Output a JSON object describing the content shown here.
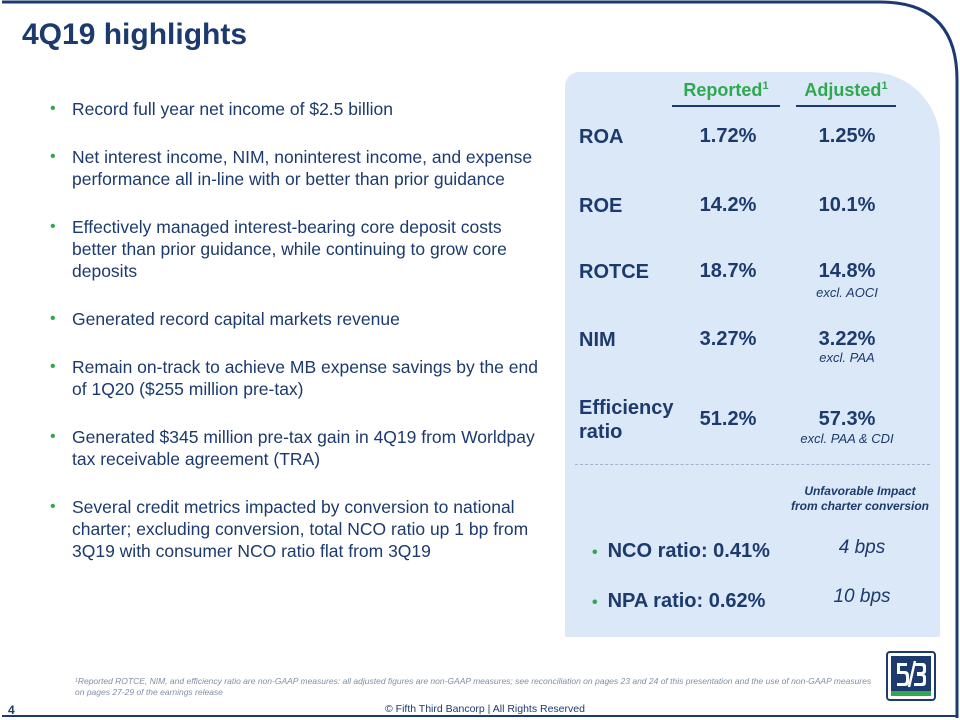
{
  "page": {
    "title": "4Q19 highlights",
    "page_number": "4",
    "copyright": "© Fifth Third Bancorp | All Rights Reserved",
    "footnote": "¹Reported ROTCE, NIM, and efficiency ratio are non-GAAP measures: all adjusted figures are non-GAAP measures; see reconciliation on pages 23 and 24 of this presentation and the use of non-GAAP measures on pages 27-29 of the earnings release"
  },
  "bullets": [
    "Record full year net income of $2.5 billion",
    "Net interest income, NIM, noninterest income, and expense performance all in-line with or better than prior guidance",
    "Effectively managed interest-bearing core deposit costs better than prior guidance, while continuing to grow core deposits",
    "Generated record capital markets revenue",
    "Remain on-track to achieve MB expense savings by the end of 1Q20 ($255 million pre-tax)",
    "Generated $345 million pre-tax gain in 4Q19 from Worldpay tax receivable agreement (TRA)",
    "Several credit metrics impacted by conversion to national charter; excluding conversion, total NCO ratio up 1 bp from 3Q19 with consumer NCO ratio flat from 3Q19"
  ],
  "metrics": {
    "col_reported": "Reported",
    "col_adjusted": "Adjusted",
    "footnote_mark": "1",
    "rows": [
      {
        "label": "ROA",
        "reported": "1.72%",
        "adjusted": "1.25%",
        "note": ""
      },
      {
        "label": "ROE",
        "reported": "14.2%",
        "adjusted": "10.1%",
        "note": ""
      },
      {
        "label": "ROTCE",
        "reported": "18.7%",
        "adjusted": "14.8%",
        "note": "excl. AOCI"
      },
      {
        "label": "NIM",
        "reported": "3.27%",
        "adjusted": "3.22%",
        "note": "excl. PAA"
      },
      {
        "label_line1": "Efficiency",
        "label_line2": "ratio",
        "reported": "51.2%",
        "adjusted": "57.3%",
        "note": "excl. PAA & CDI"
      }
    ]
  },
  "credit": {
    "impact_title_line1": "Unfavorable Impact",
    "impact_title_line2": "from charter conversion",
    "items": [
      {
        "label": "NCO ratio: 0.41%",
        "impact": "4 bps"
      },
      {
        "label": "NPA ratio: 0.62%",
        "impact": "10 bps"
      }
    ]
  },
  "colors": {
    "navy": "#1c3a6e",
    "green": "#2fa84f",
    "panel": "#dbe8f7"
  },
  "logo": {
    "name": "fifth-third-logo",
    "text": "5/3"
  }
}
